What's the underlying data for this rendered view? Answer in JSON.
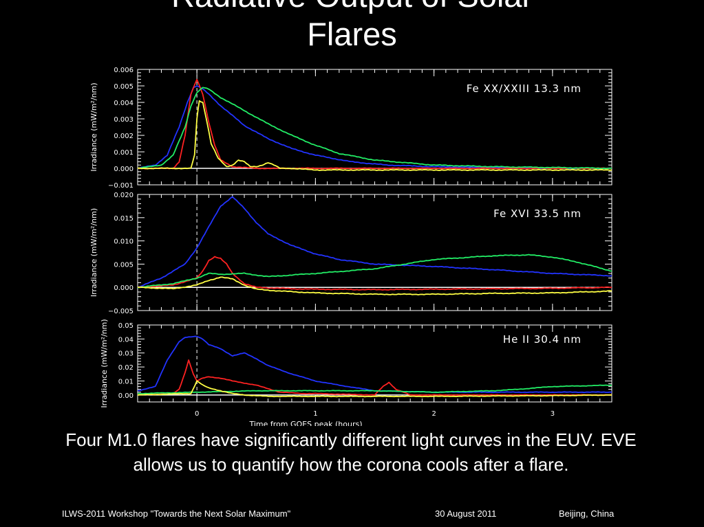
{
  "slide": {
    "title_line1": "Radiative Output of Solar",
    "title_line2": "Flares",
    "caption": "Four M1.0 flares have significantly different light curves in the EUV.  EVE allows us to quantify how the corona cools after a flare."
  },
  "footer": {
    "workshop": "ILWS-2011 Workshop \"Towards the Next Solar Maximum\"",
    "date": "30  August  2011",
    "location": "Beijing, China"
  },
  "chart_data": [
    {
      "type": "line",
      "annotation": "Fe XX/XXIII 13.3 nm",
      "ylabel": "Irradiance (mW/m²/nm)",
      "xlabel": "",
      "xlim": [
        -0.5,
        3.5
      ],
      "ylim": [
        -0.001,
        0.006
      ],
      "yticks": [
        -0.001,
        0.0,
        0.001,
        0.002,
        0.003,
        0.004,
        0.005,
        0.006
      ],
      "ytick_labels": [
        "−0.001",
        "0.000",
        "0.001",
        "0.002",
        "0.003",
        "0.004",
        "0.005",
        "0.006"
      ],
      "xticks": [
        0,
        1,
        2,
        3
      ],
      "xtick_labels": [],
      "colors": [
        "#2233ff",
        "#ff2222",
        "#22ee66",
        "#ffff44"
      ],
      "series": [
        {
          "x": [
            -0.5,
            -0.35,
            -0.25,
            -0.15,
            -0.08,
            -0.03,
            0.0,
            0.05,
            0.1,
            0.2,
            0.4,
            0.6,
            0.8,
            1.0,
            1.3,
            1.6,
            2.0,
            2.5,
            3.0,
            3.5
          ],
          "values": [
            0.0,
            0.0002,
            0.0008,
            0.0025,
            0.004,
            0.0049,
            0.005,
            0.0048,
            0.0045,
            0.0038,
            0.0026,
            0.0018,
            0.0012,
            0.0008,
            0.0004,
            0.0002,
            0.0001,
            5e-05,
            0.0,
            0.0
          ]
        },
        {
          "x": [
            -0.5,
            -0.2,
            -0.15,
            -0.1,
            -0.05,
            0.0,
            0.05,
            0.1,
            0.15,
            0.2,
            0.3,
            0.5,
            1.0,
            2.0,
            3.5
          ],
          "values": [
            0.0,
            0.0,
            0.0004,
            0.002,
            0.0045,
            0.0054,
            0.0045,
            0.0028,
            0.0014,
            0.0005,
            0.0001,
            0.0,
            0.0,
            0.0,
            0.0
          ]
        },
        {
          "x": [
            -0.5,
            -0.3,
            -0.2,
            -0.1,
            -0.05,
            0.0,
            0.05,
            0.1,
            0.2,
            0.3,
            0.4,
            0.6,
            0.8,
            1.0,
            1.2,
            1.5,
            2.0,
            2.5,
            3.0,
            3.5
          ],
          "values": [
            0.0,
            0.0002,
            0.0008,
            0.0025,
            0.0038,
            0.0046,
            0.0049,
            0.0048,
            0.0043,
            0.0039,
            0.0035,
            0.0027,
            0.002,
            0.0014,
            0.0009,
            0.0005,
            0.0002,
            0.0001,
            5e-05,
            0.0
          ]
        },
        {
          "x": [
            -0.5,
            -0.05,
            -0.02,
            0.0,
            0.02,
            0.05,
            0.08,
            0.12,
            0.18,
            0.25,
            0.3,
            0.35,
            0.4,
            0.45,
            0.5,
            0.55,
            0.6,
            0.65,
            0.7,
            0.8,
            1.0,
            2.0,
            3.5
          ],
          "values": [
            0.0,
            0.0,
            0.0008,
            0.003,
            0.0041,
            0.004,
            0.003,
            0.0015,
            0.0006,
            0.0001,
            0.0002,
            0.0005,
            0.0004,
            0.0001,
            0.0001,
            0.0002,
            0.00035,
            0.0002,
            0.0,
            0.0,
            -0.0001,
            -0.0001,
            -0.0001
          ]
        }
      ]
    },
    {
      "type": "line",
      "annotation": "Fe XVI 33.5 nm",
      "ylabel": "Irradiance (mW/m²/nm)",
      "xlabel": "",
      "xlim": [
        -0.5,
        3.5
      ],
      "ylim": [
        -0.005,
        0.02
      ],
      "yticks": [
        -0.005,
        0.0,
        0.005,
        0.01,
        0.015,
        0.02
      ],
      "ytick_labels": [
        "−0.005",
        "0.000",
        "0.005",
        "0.010",
        "0.015",
        "0.020"
      ],
      "xticks": [
        0,
        1,
        2,
        3
      ],
      "xtick_labels": [],
      "colors": [
        "#2233ff",
        "#ff2222",
        "#22ee66",
        "#ffff44"
      ],
      "series": [
        {
          "x": [
            -0.5,
            -0.3,
            -0.1,
            0.0,
            0.1,
            0.2,
            0.3,
            0.4,
            0.5,
            0.6,
            0.8,
            1.0,
            1.2,
            1.5,
            2.0,
            2.5,
            3.0,
            3.5
          ],
          "values": [
            0.0,
            0.002,
            0.005,
            0.0085,
            0.013,
            0.0175,
            0.0195,
            0.017,
            0.014,
            0.0115,
            0.009,
            0.0072,
            0.006,
            0.005,
            0.0045,
            0.0038,
            0.003,
            0.0025
          ]
        },
        {
          "x": [
            -0.5,
            -0.2,
            0.0,
            0.05,
            0.1,
            0.15,
            0.2,
            0.25,
            0.3,
            0.4,
            0.5,
            0.8,
            1.0,
            1.5,
            2.0,
            2.5,
            3.0,
            3.5
          ],
          "values": [
            0.0,
            0.0005,
            0.002,
            0.0035,
            0.0058,
            0.0066,
            0.0062,
            0.005,
            0.003,
            0.0008,
            0.0,
            -0.0003,
            -0.0004,
            -0.0005,
            -0.0004,
            -0.0003,
            -0.0002,
            0.0
          ]
        },
        {
          "x": [
            -0.5,
            -0.2,
            0.0,
            0.1,
            0.2,
            0.4,
            0.6,
            1.0,
            1.5,
            2.0,
            2.5,
            2.8,
            3.0,
            3.2,
            3.5
          ],
          "values": [
            0.0,
            0.0008,
            0.002,
            0.003,
            0.0028,
            0.003,
            0.0023,
            0.003,
            0.004,
            0.006,
            0.0068,
            0.007,
            0.0065,
            0.0055,
            0.0035
          ]
        },
        {
          "x": [
            -0.5,
            -0.2,
            0.0,
            0.1,
            0.2,
            0.3,
            0.4,
            0.5,
            0.7,
            1.0,
            1.5,
            2.0,
            2.5,
            3.0,
            3.5
          ],
          "values": [
            0.0,
            -0.0003,
            0.0005,
            0.0015,
            0.0022,
            0.0018,
            0.0005,
            -0.0004,
            -0.0008,
            -0.0012,
            -0.0015,
            -0.0015,
            -0.0013,
            -0.0012,
            -0.0008
          ]
        }
      ]
    },
    {
      "type": "line",
      "annotation": "He II 30.4 nm",
      "ylabel": "Irradiance (mW/m²/nm)",
      "xlabel": "Time from GOES peak (hours)",
      "xlim": [
        -0.5,
        3.5
      ],
      "ylim": [
        -0.005,
        0.05
      ],
      "yticks": [
        0.0,
        0.01,
        0.02,
        0.03,
        0.04,
        0.05
      ],
      "ytick_labels": [
        "0.00",
        "0.01",
        "0.02",
        "0.03",
        "0.04",
        "0.05"
      ],
      "xticks": [
        0,
        1,
        2,
        3
      ],
      "xtick_labels": [
        "0",
        "1",
        "2",
        "3"
      ],
      "colors": [
        "#2233ff",
        "#ff2222",
        "#22ee66",
        "#ffff44"
      ],
      "series": [
        {
          "x": [
            -0.5,
            -0.35,
            -0.25,
            -0.15,
            -0.1,
            0.0,
            0.05,
            0.1,
            0.2,
            0.3,
            0.4,
            0.5,
            0.6,
            0.8,
            1.0,
            1.2,
            1.5,
            2.0,
            2.5,
            3.0,
            3.5
          ],
          "values": [
            0.003,
            0.006,
            0.025,
            0.038,
            0.041,
            0.042,
            0.04,
            0.036,
            0.033,
            0.028,
            0.03,
            0.026,
            0.021,
            0.015,
            0.01,
            0.007,
            0.003,
            0.002,
            0.002,
            0.002,
            0.002
          ]
        },
        {
          "x": [
            -0.5,
            -0.2,
            -0.15,
            -0.1,
            -0.07,
            -0.03,
            0.0,
            0.05,
            0.1,
            0.2,
            0.3,
            0.5,
            0.7,
            0.9,
            1.0,
            1.5,
            1.57,
            1.62,
            1.68,
            1.8,
            2.0,
            2.5,
            3.0,
            3.5
          ],
          "values": [
            0.0,
            0.001,
            0.004,
            0.016,
            0.025,
            0.015,
            0.01,
            0.012,
            0.013,
            0.012,
            0.01,
            0.007,
            0.002,
            0.001,
            0.001,
            0.0,
            0.006,
            0.009,
            0.004,
            0.0,
            0.0,
            0.0,
            0.0,
            0.0
          ]
        },
        {
          "x": [
            -0.5,
            0.0,
            0.5,
            1.0,
            1.5,
            2.0,
            2.5,
            2.7,
            3.0,
            3.5
          ],
          "values": [
            0.001,
            0.002,
            0.003,
            0.003,
            0.003,
            0.002,
            0.003,
            0.004,
            0.006,
            0.007
          ]
        },
        {
          "x": [
            -0.5,
            -0.05,
            0.0,
            0.05,
            0.1,
            0.2,
            0.3,
            0.4,
            0.6,
            1.0,
            2.0,
            3.0,
            3.5
          ],
          "values": [
            0.0,
            0.001,
            0.01,
            0.007,
            0.005,
            0.003,
            0.001,
            0.0,
            -0.001,
            -0.001,
            -0.001,
            -0.0005,
            0.0
          ]
        }
      ]
    }
  ]
}
